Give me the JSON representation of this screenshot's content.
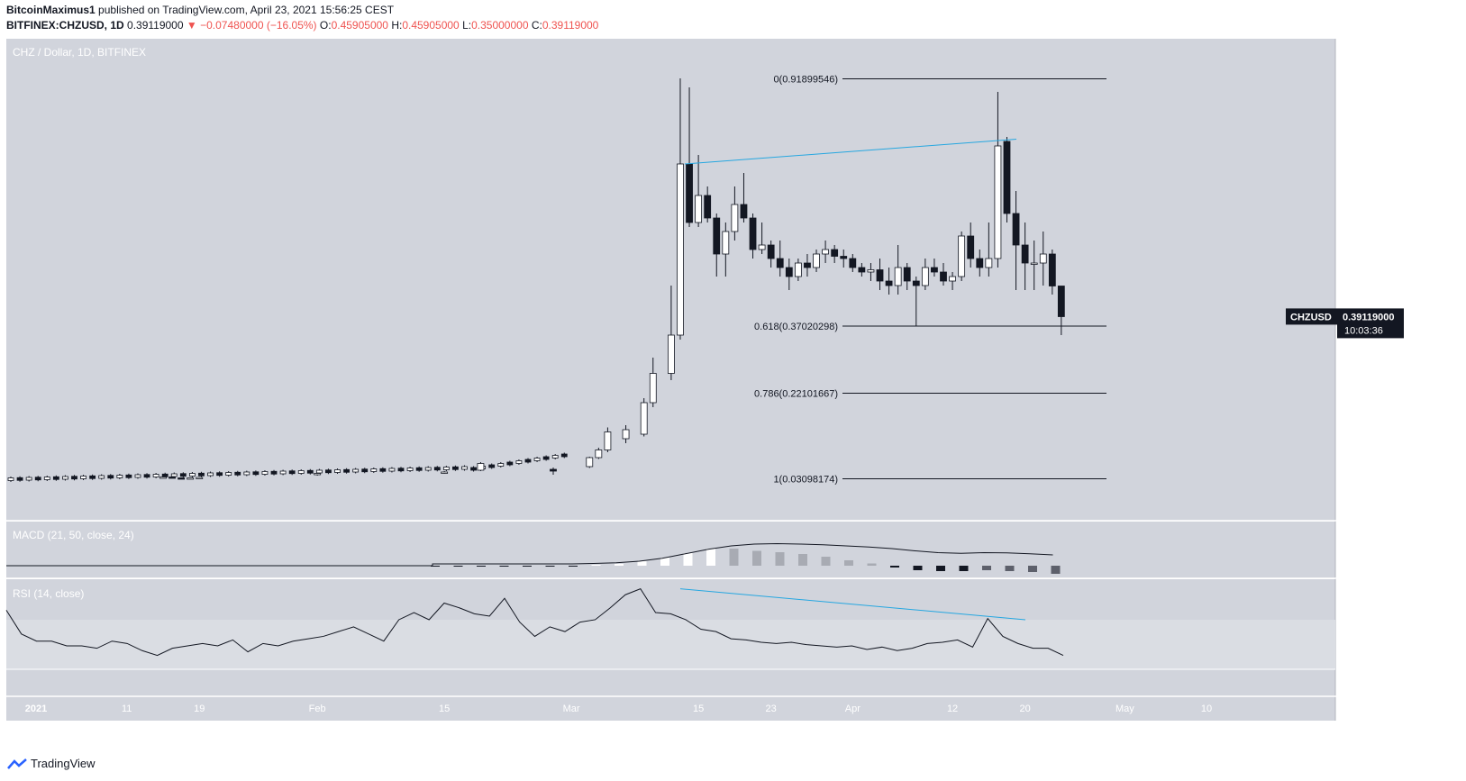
{
  "header": {
    "author": "BitcoinMaximus1",
    "published_text": "published on TradingView.com, April 23, 2021 15:56:25 CEST",
    "symbol": "BITFINEX:CHZUSD, 1D",
    "last": "0.39119000",
    "change": "−0.07480000 (−16.05%)",
    "o_label": "O:",
    "o": "0.45905000",
    "h_label": "H:",
    "h": "0.45905000",
    "l_label": "L:",
    "l": "0.35000000",
    "c_label": "C:",
    "c": "0.39119000"
  },
  "footer": {
    "brand": "TradingView"
  },
  "colors": {
    "pane_bg": "#d1d4dc",
    "rsi_band": "#dadde3",
    "trendline": "#26a7e0",
    "candle_up": "#ffffff",
    "candle_down": "#131722",
    "price_tag_bg": "#131722"
  },
  "chart_data": {
    "type": "candlestick",
    "title": "CHZ / Dollar, 1D, BITFINEX",
    "y_unit": "USD",
    "ylim": [
      -0.05,
      1.0
    ],
    "y_ticks": [
      "1.00000000",
      "0.90000000",
      "0.80000000",
      "0.70000000",
      "0.60000000",
      "0.50000000",
      "0.40000000",
      "0.30000000",
      "0.20000000",
      "0.10000000",
      "0.00000000"
    ],
    "x_ticks": [
      "2021",
      "11",
      "19",
      "Feb",
      "15",
      "Mar",
      "15",
      "23",
      "Apr",
      "12",
      "20",
      "May",
      "10"
    ],
    "price_tag": {
      "symbol": "CHZUSD",
      "value": "0.39119000",
      "countdown": "10:03:36"
    },
    "fib_levels": [
      {
        "label": "0(0.91899546)",
        "value": 0.919
      },
      {
        "label": "0.618(0.37020298)",
        "value": 0.37
      },
      {
        "label": "0.786(0.22101667)",
        "value": 0.221
      },
      {
        "label": "1(0.03098174)",
        "value": 0.031
      }
    ],
    "trendline_price": {
      "from": [
        "Mar 13",
        0.73
      ],
      "to": [
        "Apr 18",
        0.785
      ]
    },
    "candles": [
      [
        "2021-01-15",
        0.034,
        0.037,
        0.033,
        0.035
      ],
      [
        "2021-01-16",
        0.035,
        0.036,
        0.032,
        0.033
      ],
      [
        "2021-01-17",
        0.033,
        0.034,
        0.031,
        0.032
      ],
      [
        "2021-01-18",
        0.032,
        0.034,
        0.031,
        0.033
      ],
      [
        "2021-01-19",
        0.033,
        0.035,
        0.032,
        0.034
      ],
      [
        "2021-02-01",
        0.04,
        0.044,
        0.038,
        0.043
      ],
      [
        "2021-02-15",
        0.045,
        0.048,
        0.042,
        0.046
      ],
      [
        "2021-02-19",
        0.05,
        0.068,
        0.048,
        0.065
      ],
      [
        "2021-02-27",
        0.052,
        0.056,
        0.04,
        0.048
      ],
      [
        "2021-03-03",
        0.058,
        0.08,
        0.055,
        0.078
      ],
      [
        "2021-03-04",
        0.078,
        0.1,
        0.075,
        0.095
      ],
      [
        "2021-03-05",
        0.095,
        0.145,
        0.09,
        0.135
      ],
      [
        "2021-03-07",
        0.12,
        0.15,
        0.11,
        0.14
      ],
      [
        "2021-03-09",
        0.13,
        0.21,
        0.125,
        0.2
      ],
      [
        "2021-03-10",
        0.2,
        0.3,
        0.19,
        0.265
      ],
      [
        "2021-03-12",
        0.265,
        0.46,
        0.25,
        0.35
      ],
      [
        "2021-03-13",
        0.35,
        0.92,
        0.34,
        0.73
      ],
      [
        "2021-03-14",
        0.73,
        0.9,
        0.59,
        0.6
      ],
      [
        "2021-03-15",
        0.6,
        0.75,
        0.59,
        0.66
      ],
      [
        "2021-03-16",
        0.66,
        0.68,
        0.6,
        0.61
      ],
      [
        "2021-03-17",
        0.61,
        0.62,
        0.48,
        0.53
      ],
      [
        "2021-03-18",
        0.53,
        0.6,
        0.48,
        0.58
      ],
      [
        "2021-03-19",
        0.58,
        0.68,
        0.56,
        0.64
      ],
      [
        "2021-03-20",
        0.64,
        0.71,
        0.6,
        0.61
      ],
      [
        "2021-03-21",
        0.61,
        0.62,
        0.52,
        0.54
      ],
      [
        "2021-03-22",
        0.54,
        0.6,
        0.53,
        0.55
      ],
      [
        "2021-03-23",
        0.55,
        0.56,
        0.5,
        0.52
      ],
      [
        "2021-03-24",
        0.52,
        0.56,
        0.48,
        0.5
      ],
      [
        "2021-03-25",
        0.5,
        0.52,
        0.45,
        0.48
      ],
      [
        "2021-03-26",
        0.48,
        0.52,
        0.47,
        0.51
      ],
      [
        "2021-03-27",
        0.51,
        0.53,
        0.48,
        0.5
      ],
      [
        "2021-03-28",
        0.5,
        0.54,
        0.49,
        0.53
      ],
      [
        "2021-03-29",
        0.53,
        0.56,
        0.51,
        0.54
      ],
      [
        "2021-03-30",
        0.54,
        0.55,
        0.51,
        0.525
      ],
      [
        "2021-03-31",
        0.525,
        0.54,
        0.5,
        0.52
      ],
      [
        "2021-04-01",
        0.52,
        0.53,
        0.49,
        0.5
      ],
      [
        "2021-04-02",
        0.5,
        0.51,
        0.48,
        0.49
      ],
      [
        "2021-04-03",
        0.49,
        0.51,
        0.47,
        0.495
      ],
      [
        "2021-04-04",
        0.495,
        0.52,
        0.45,
        0.47
      ],
      [
        "2021-04-05",
        0.47,
        0.5,
        0.44,
        0.46
      ],
      [
        "2021-04-06",
        0.46,
        0.55,
        0.44,
        0.5
      ],
      [
        "2021-04-07",
        0.5,
        0.51,
        0.45,
        0.47
      ],
      [
        "2021-04-08",
        0.47,
        0.48,
        0.37,
        0.46
      ],
      [
        "2021-04-09",
        0.46,
        0.52,
        0.45,
        0.5
      ],
      [
        "2021-04-10",
        0.5,
        0.52,
        0.48,
        0.49
      ],
      [
        "2021-04-11",
        0.49,
        0.51,
        0.46,
        0.47
      ],
      [
        "2021-04-12",
        0.47,
        0.49,
        0.45,
        0.48
      ],
      [
        "2021-04-13",
        0.48,
        0.58,
        0.47,
        0.57
      ],
      [
        "2021-04-14",
        0.57,
        0.6,
        0.5,
        0.52
      ],
      [
        "2021-04-15",
        0.52,
        0.54,
        0.48,
        0.5
      ],
      [
        "2021-04-16",
        0.5,
        0.6,
        0.48,
        0.52
      ],
      [
        "2021-04-17",
        0.52,
        0.89,
        0.5,
        0.77
      ],
      [
        "2021-04-18",
        0.78,
        0.79,
        0.6,
        0.62
      ],
      [
        "2021-04-19",
        0.62,
        0.67,
        0.45,
        0.55
      ],
      [
        "2021-04-20",
        0.55,
        0.6,
        0.45,
        0.51
      ],
      [
        "2021-04-21",
        0.51,
        0.56,
        0.45,
        0.51
      ],
      [
        "2021-04-22",
        0.51,
        0.58,
        0.46,
        0.53
      ],
      [
        "2021-04-23",
        0.53,
        0.54,
        0.44,
        0.459
      ],
      [
        "2021-04-23b",
        0.459,
        0.459,
        0.35,
        0.391
      ]
    ],
    "macd": {
      "label": "MACD (21, 50, close, 24)",
      "tick": "0.00000000",
      "macd_line": [
        0.0,
        0.0,
        0.0,
        0.0,
        0.0,
        0.0,
        0.0,
        0.002,
        0.005,
        0.012,
        0.025,
        0.045,
        0.065,
        0.08,
        0.088,
        0.09,
        0.088,
        0.085,
        0.08,
        0.075,
        0.068,
        0.058,
        0.05,
        0.047,
        0.05,
        0.049,
        0.045,
        0.04
      ],
      "histogram": [
        0.0,
        0.0,
        0.0,
        0.0,
        0.0,
        0.0,
        0.0,
        0.002,
        0.004,
        0.01,
        0.018,
        0.028,
        0.038,
        0.038,
        0.033,
        0.03,
        0.026,
        0.02,
        0.012,
        0.005,
        -0.004,
        -0.01,
        -0.012,
        -0.012,
        -0.01,
        -0.012,
        -0.014,
        -0.018
      ]
    },
    "rsi": {
      "label": "RSI (14, close)",
      "ticks": [
        "100.00",
        "75.00",
        "50.00"
      ],
      "values": [
        80,
        60,
        54,
        54,
        50,
        50,
        48,
        54,
        52,
        46,
        42,
        48,
        50,
        52,
        50,
        55,
        45,
        52,
        50,
        54,
        56,
        58,
        62,
        66,
        60,
        54,
        72,
        78,
        72,
        86,
        82,
        77,
        75,
        90,
        70,
        58,
        66,
        62,
        70,
        72,
        82,
        93,
        98,
        78,
        77,
        72,
        64,
        62,
        56,
        55,
        53,
        52,
        53,
        51,
        50,
        49,
        50,
        47,
        49,
        46,
        48,
        52,
        53,
        55,
        49,
        73,
        58,
        52,
        48,
        48,
        42
      ],
      "trendline": {
        "from": [
          100,
          100
        ],
        "to": [
          96,
          71
        ]
      }
    }
  }
}
